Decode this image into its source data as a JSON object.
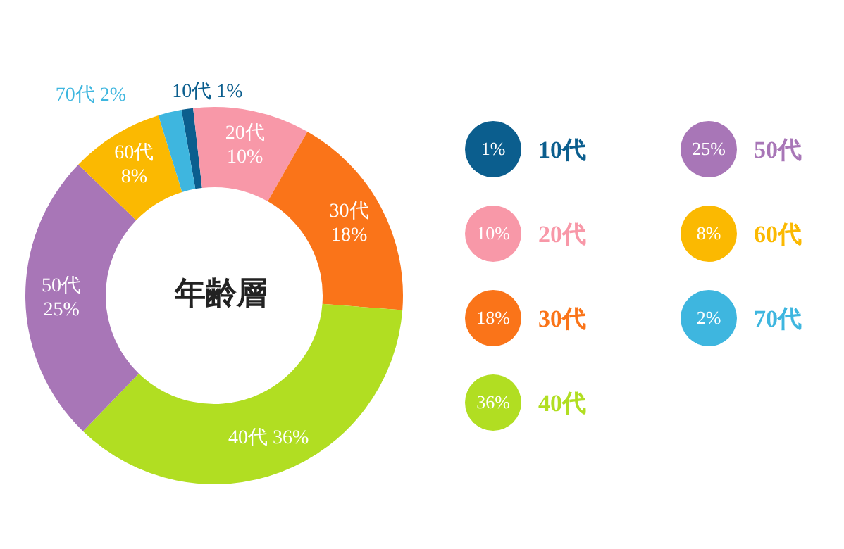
{
  "chart_data": {
    "type": "donut",
    "title": "年齢層",
    "categories": [
      "10代",
      "20代",
      "30代",
      "40代",
      "50代",
      "60代",
      "70代"
    ],
    "values": [
      1,
      10,
      18,
      36,
      25,
      8,
      2
    ],
    "value_labels": [
      "1%",
      "10%",
      "18%",
      "36%",
      "25%",
      "8%",
      "2%"
    ],
    "colors": [
      "#0b5e8e",
      "#f898a8",
      "#fa7419",
      "#b1de22",
      "#a876b7",
      "#fbb901",
      "#3eb6df"
    ],
    "legend": "right"
  }
}
